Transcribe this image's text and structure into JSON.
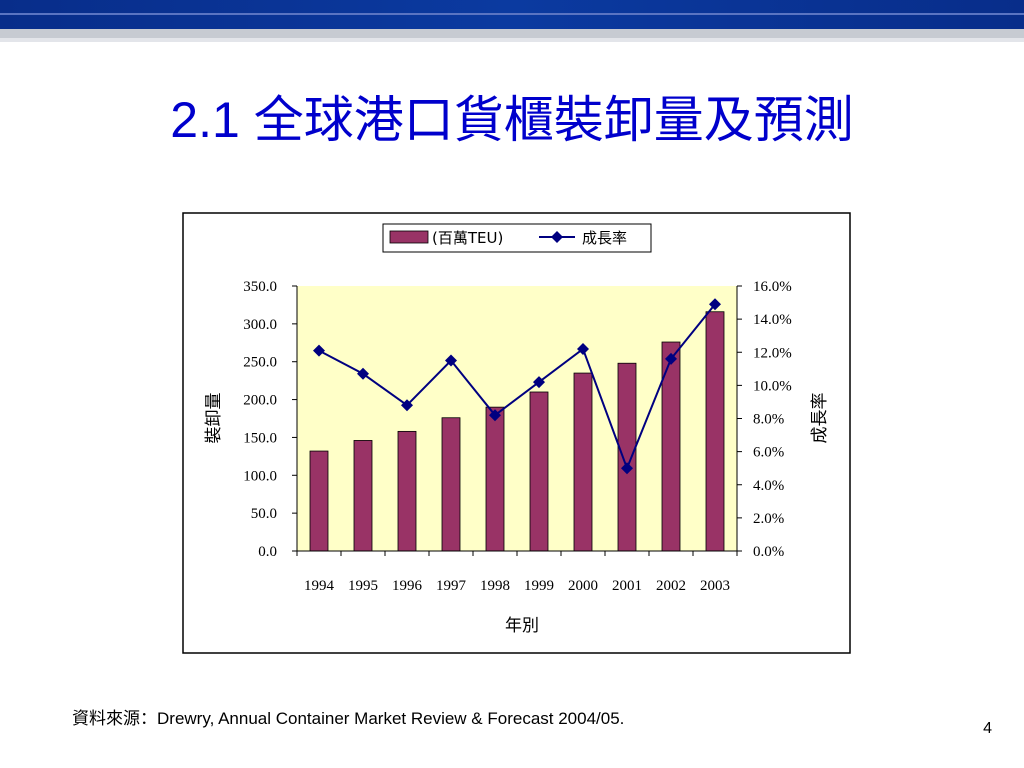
{
  "slide": {
    "title": "2.1 全球港口貨櫃裝卸量及預測",
    "source": "資料來源：Drewry, Annual Container Market Review & Forecast 2004/05.",
    "page_number": "4"
  },
  "colors": {
    "title": "#0000cc",
    "header_dark": "#0b3aa0",
    "header_light": "#c7cbd2",
    "plot_bg": "#ffffc8",
    "bar_fill": "#993366",
    "line": "#000080"
  },
  "chart_data": {
    "type": "bar",
    "categories": [
      "1994",
      "1995",
      "1996",
      "1997",
      "1998",
      "1999",
      "2000",
      "2001",
      "2002",
      "2003"
    ],
    "series": [
      {
        "name": "(百萬TEU)",
        "type": "bar",
        "axis": "left",
        "values": [
          132,
          146,
          158,
          176,
          190,
          210,
          235,
          248,
          276,
          316
        ]
      },
      {
        "name": "成長率",
        "type": "line",
        "axis": "right",
        "values": [
          12.1,
          10.7,
          8.8,
          11.5,
          8.2,
          10.2,
          12.2,
          5.0,
          11.6,
          14.9
        ]
      }
    ],
    "xlabel": "年別",
    "ylabel": "裝卸量",
    "y2label": "成長率",
    "ylim": [
      0,
      350
    ],
    "y2lim": [
      0,
      16
    ],
    "y_ticks": [
      "0.0",
      "50.0",
      "100.0",
      "150.0",
      "200.0",
      "250.0",
      "300.0",
      "350.0"
    ],
    "y2_ticks": [
      "0.0%",
      "2.0%",
      "4.0%",
      "6.0%",
      "8.0%",
      "10.0%",
      "12.0%",
      "14.0%",
      "16.0%"
    ],
    "legend_position": "top-center",
    "grid": false
  }
}
